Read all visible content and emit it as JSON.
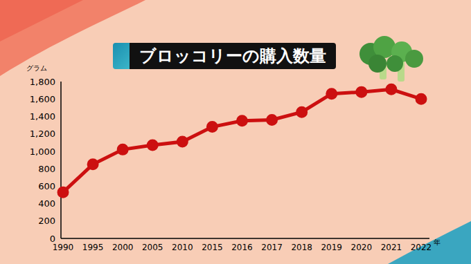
{
  "chart_data": {
    "type": "line",
    "title": "ブロッコリーの購入数量",
    "y_label": "グラム",
    "x_label": "年",
    "categories": [
      "1990",
      "1995",
      "2000",
      "2005",
      "2010",
      "2015",
      "2016",
      "2017",
      "2018",
      "2019",
      "2020",
      "2021",
      "2022"
    ],
    "values": [
      530,
      850,
      1020,
      1070,
      1110,
      1280,
      1350,
      1360,
      1450,
      1660,
      1680,
      1710,
      1600
    ],
    "color": "#cc1010",
    "marker": "circle",
    "ylim": [
      0,
      1800
    ],
    "yticks": [
      0,
      200,
      400,
      600,
      800,
      {
        "value": 1000,
        "label": "1,000"
      },
      {
        "value": 1200,
        "label": "1,200"
      },
      {
        "value": 1400,
        "label": "1,400"
      },
      {
        "value": 1600,
        "label": "1,600"
      },
      {
        "value": 1800,
        "label": "1,800"
      }
    ],
    "grid": false
  }
}
